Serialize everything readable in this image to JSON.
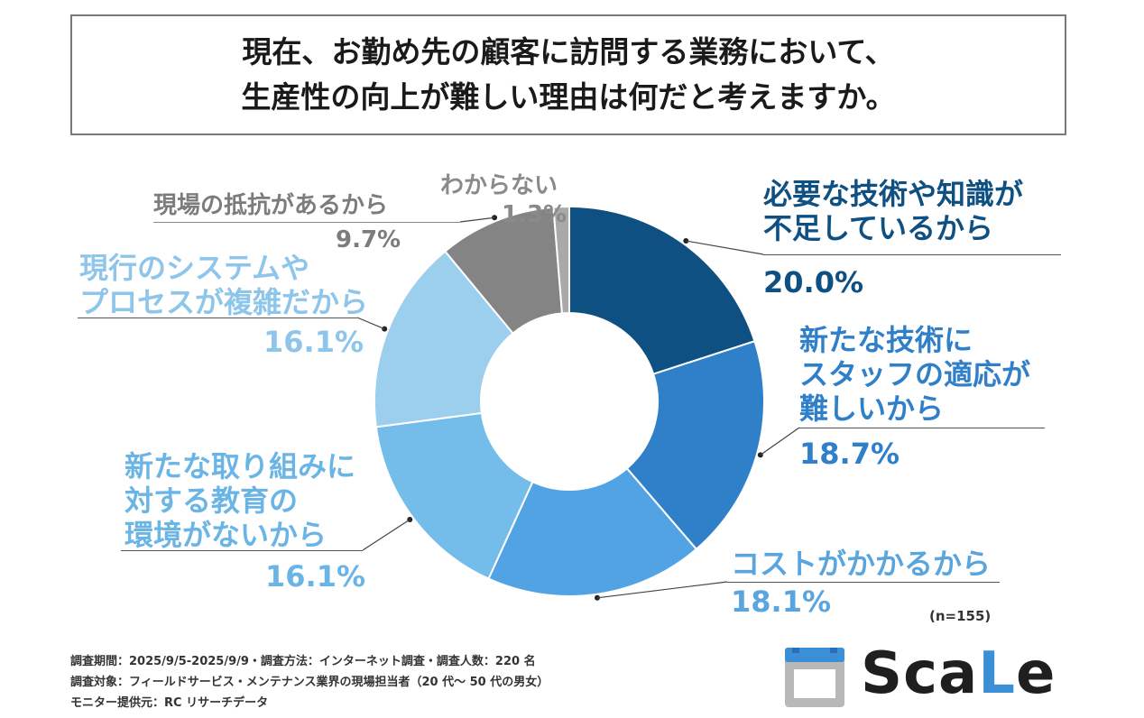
{
  "title": {
    "line1": "現在、お勤め先の顧客に訪問する業務において、",
    "line2": "生産性の向上が難しい理由は何だと考えますか。"
  },
  "chart_data": {
    "type": "pie",
    "donut": true,
    "title": "現在、お勤め先の顧客に訪問する業務において、生産性の向上が難しい理由は何だと考えますか。",
    "unit": "%",
    "sample_size": "(n=155)",
    "slices": [
      {
        "label_lines": [
          "必要な技術や知識が",
          "不足しているから"
        ],
        "value": 20.0,
        "value_label": "20.0%",
        "color": "#0f5082"
      },
      {
        "label_lines": [
          "新たな技術に",
          "スタッフの適応が",
          "難しいから"
        ],
        "value": 18.7,
        "value_label": "18.7%",
        "color": "#2f7fc9"
      },
      {
        "label_lines": [
          "コストがかかるから"
        ],
        "value": 18.1,
        "value_label": "18.1%",
        "color": "#52a3e4"
      },
      {
        "label_lines": [
          "新たな取り組みに",
          "対する教育の",
          "環境がないから"
        ],
        "value": 16.1,
        "value_label": "16.1%",
        "color": "#74bcea"
      },
      {
        "label_lines": [
          "現行のシステムや",
          "プロセスが複雑だから"
        ],
        "value": 16.1,
        "value_label": "16.1%",
        "color": "#9ccfee"
      },
      {
        "label_lines": [
          "現場の抵抗があるから"
        ],
        "value": 9.7,
        "value_label": "9.7%",
        "color": "#848484"
      },
      {
        "label_lines": [
          "わからない"
        ],
        "value": 1.3,
        "value_label": "1.3%",
        "color": "#a9a9a9"
      }
    ]
  },
  "footnotes": {
    "line1": "調査期間：2025/9/5-2025/9/9・調査方法：インターネット調査・調査人数：220 名",
    "line2": "調査対象：フィールドサービス・メンテナンス業界の現場担当者（20 代～ 50 代の男女）",
    "line3": "モニター提供元：RC リサーチデータ"
  },
  "logo": {
    "part1": "Sca",
    "part2": "L",
    "part3": "e",
    "accent_color": "#3a8fd6"
  }
}
